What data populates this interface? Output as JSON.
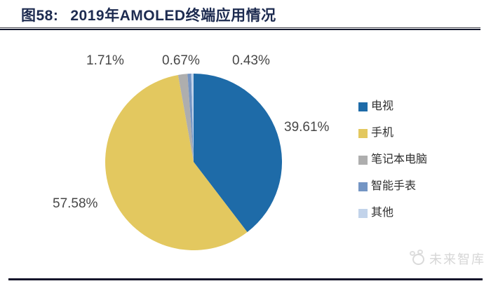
{
  "header": {
    "figure_label": "图58:",
    "figure_title": "2019年AMOLED终端应用情况"
  },
  "chart_data": {
    "type": "pie",
    "title": "2019年AMOLED终端应用情况",
    "start_angle_deg": 0,
    "direction": "clockwise",
    "legend_position": "right",
    "categories": [
      "电视",
      "手机",
      "笔记本电脑",
      "智能手表",
      "其他"
    ],
    "values": [
      39.61,
      57.58,
      1.71,
      0.67,
      0.43
    ],
    "slices": [
      {
        "label": "电视",
        "value": 39.61,
        "display": "39.61%",
        "color": "#1e6ba8"
      },
      {
        "label": "手机",
        "value": 57.58,
        "display": "57.58%",
        "color": "#e3c85f"
      },
      {
        "label": "笔记本电脑",
        "value": 1.71,
        "display": "1.71%",
        "color": "#aeaeae"
      },
      {
        "label": "智能手表",
        "value": 0.67,
        "display": "0.67%",
        "color": "#7495c4"
      },
      {
        "label": "其他",
        "value": 0.43,
        "display": "0.43%",
        "color": "#c2d3ea"
      }
    ]
  },
  "footer": {
    "brand": "未来智库"
  }
}
